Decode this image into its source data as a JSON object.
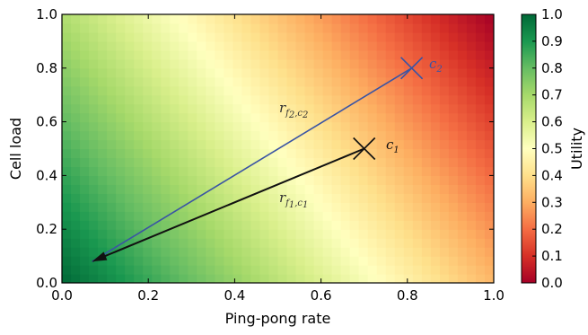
{
  "chart_data": {
    "type": "heatmap",
    "xlabel": "Ping-pong rate",
    "ylabel": "Cell load",
    "xlim": [
      0.0,
      1.0
    ],
    "ylim": [
      0.0,
      1.0
    ],
    "x_ticks": [
      "0.0",
      "0.2",
      "0.4",
      "0.6",
      "0.8",
      "1.0"
    ],
    "y_ticks": [
      "0.0",
      "0.2",
      "0.4",
      "0.6",
      "0.8",
      "1.0"
    ],
    "colorbar": {
      "label": "Utility",
      "range": [
        0.0,
        1.0
      ],
      "ticks": [
        "0.0",
        "0.1",
        "0.2",
        "0.3",
        "0.4",
        "0.5",
        "0.6",
        "0.7",
        "0.8",
        "0.9",
        "1.0"
      ],
      "colormap": "RdYlGn",
      "colors": [
        "#a50026",
        "#d73027",
        "#f46d43",
        "#fdae61",
        "#fee08b",
        "#ffffbf",
        "#d9ef8b",
        "#a6d96a",
        "#66bd63",
        "#1a9850",
        "#006837"
      ]
    },
    "field": {
      "description_of_values": "utility decreases from ~1.0 at (0,0) to ~0.0 at (1,1)",
      "corners": {
        "x0y0": 1.0,
        "x1y0": 0.32,
        "x0y1": 0.68,
        "x1y1": 0.0
      }
    },
    "points": [
      {
        "label": "c1",
        "x": 0.7,
        "y": 0.5,
        "marker": "x",
        "color": "#111111"
      },
      {
        "label": "c2",
        "x": 0.81,
        "y": 0.8,
        "marker": "x",
        "color": "#3a54a4"
      }
    ],
    "arrows": [
      {
        "label": "r_{f1,c1}",
        "from": [
          0.7,
          0.5
        ],
        "to": [
          0.07,
          0.08
        ],
        "color": "#111111"
      },
      {
        "label": "r_{f2,c2}",
        "from": [
          0.81,
          0.8
        ],
        "to": [
          0.07,
          0.08
        ],
        "color": "#3a54a4"
      }
    ],
    "annotations": {
      "c1_main": "c",
      "c1_sub": "1",
      "c2_main": "c",
      "c2_sub": "2",
      "r1_main": "r",
      "r1_sub": "f",
      "r1_subsub": "1",
      "r1_subtail": ",c",
      "r1_subtailsub": "1",
      "r2_main": "r",
      "r2_sub": "f",
      "r2_subsub": "2",
      "r2_subtail": ",c",
      "r2_subtailsub": "2"
    }
  }
}
